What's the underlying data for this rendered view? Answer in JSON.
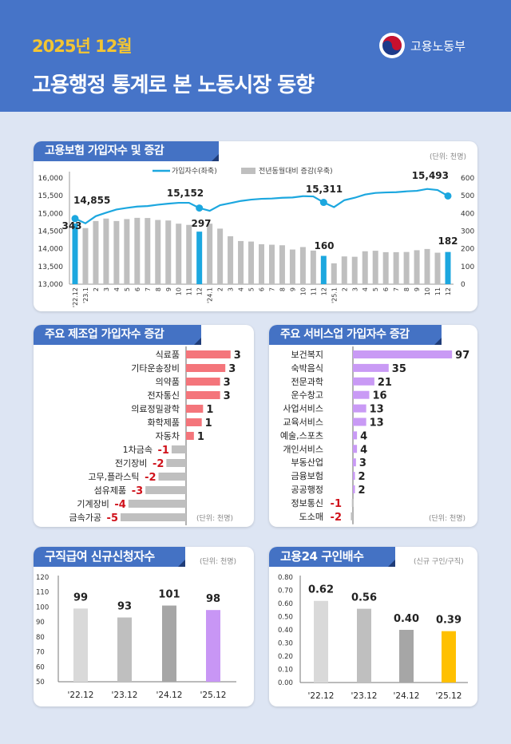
{
  "header": {
    "date": "2025년 12월",
    "title": "고용행정 통계로 본 노동시장 동향",
    "ministry": "고용노동부",
    "background": "#4674c8"
  },
  "chart_data": [
    {
      "type": "bar+line",
      "title": "고용보험 가입자수 및 증감",
      "unit": "(단위: 천명)",
      "legend": [
        "가입자수(좌축)",
        "전년동월대비 증감(우축)"
      ],
      "legend_position": "top",
      "categories": [
        "'22.12",
        "'23.1",
        "2",
        "3",
        "4",
        "5",
        "6",
        "7",
        "8",
        "9",
        "10",
        "11",
        "12",
        "'24.1",
        "2",
        "3",
        "4",
        "5",
        "6",
        "7",
        "8",
        "9",
        "10",
        "11",
        "12",
        "'25.1",
        "2",
        "3",
        "4",
        "5",
        "6",
        "7",
        "8",
        "9",
        "10",
        "11",
        "12"
      ],
      "left_axis": {
        "ylim": [
          13000,
          16000
        ],
        "ticks": [
          "13,000",
          "13,500",
          "14,000",
          "14,500",
          "15,000",
          "15,500",
          "16,000"
        ]
      },
      "right_axis": {
        "ylim": [
          0,
          600
        ],
        "ticks": [
          "0",
          "100",
          "200",
          "300",
          "400",
          "500",
          "600"
        ]
      },
      "line_series": {
        "name": "가입자수(좌축)",
        "color": "#1ca7df",
        "values": [
          14855,
          14720,
          14922,
          15020,
          15110,
          15156,
          15193,
          15208,
          15246,
          15276,
          15299,
          15299,
          15152,
          15073,
          15231,
          15291,
          15352,
          15389,
          15412,
          15420,
          15442,
          15450,
          15487,
          15480,
          15311,
          15178,
          15374,
          15442,
          15533,
          15578,
          15593,
          15600,
          15623,
          15638,
          15691,
          15661,
          15493
        ],
        "labels": [
          {
            "index": 0,
            "text": "14,855"
          },
          {
            "index": 12,
            "text": "15,152"
          },
          {
            "index": 24,
            "text": "15,311"
          },
          {
            "index": 36,
            "text": "15,493"
          }
        ]
      },
      "bar_series": {
        "name": "전년동월대비 증감(우축)",
        "color": "#bfbfbf",
        "highlight_color": "#1ca7df",
        "values": [
          343,
          317,
          357,
          371,
          357,
          368,
          375,
          374,
          363,
          360,
          342,
          335,
          297,
          342,
          314,
          271,
          244,
          241,
          226,
          223,
          220,
          196,
          210,
          190,
          160,
          118,
          157,
          155,
          186,
          189,
          181,
          181,
          182,
          192,
          199,
          178,
          182
        ],
        "labels": [
          {
            "index": 0,
            "text": "343"
          },
          {
            "index": 12,
            "text": "297"
          },
          {
            "index": 24,
            "text": "160"
          },
          {
            "index": 36,
            "text": "182"
          }
        ]
      }
    },
    {
      "type": "hbar",
      "title": "주요 제조업 가입자수 증감",
      "unit": "(단위: 천명)",
      "categories": [
        "식료품",
        "기타운송장비",
        "의약품",
        "전자통신",
        "의료정밀광학",
        "화학제품",
        "자동차",
        "1차금속",
        "전기장비",
        "고무,플라스틱",
        "섬유제품",
        "기계장비",
        "금속가공"
      ],
      "values": [
        3.4,
        3.0,
        2.6,
        2.6,
        1.3,
        1.2,
        0.6,
        -1.1,
        -1.5,
        -2.1,
        -3.1,
        -4.4,
        -5.0
      ],
      "labels": [
        "3",
        "3",
        "3",
        "3",
        "1",
        "1",
        "1",
        "-1",
        "-2",
        "-2",
        "-3",
        "-4",
        "-5"
      ],
      "positive_color": "#f4757b",
      "negative_color": "#bfbfbf",
      "negative_label_color": "#d0121b"
    },
    {
      "type": "hbar",
      "title": "주요 서비스업 가입자수 증감",
      "unit": "(단위: 천명)",
      "categories": [
        "보건복지",
        "숙박음식",
        "전문과학",
        "운수창고",
        "사업서비스",
        "교육서비스",
        "예술,스포츠",
        "개인서비스",
        "부동산업",
        "금융보험",
        "공공행정",
        "정보통신",
        "도소매"
      ],
      "values": [
        97,
        35,
        21,
        16,
        13,
        13,
        4,
        4,
        3,
        2,
        2,
        -1,
        -2
      ],
      "labels": [
        "97",
        "35",
        "21",
        "16",
        "13",
        "13",
        "4",
        "4",
        "3",
        "2",
        "2",
        "-1",
        "-2"
      ],
      "positive_color": "#c99af5",
      "negative_color": "#bfbfbf",
      "negative_label_color": "#d0121b"
    },
    {
      "type": "bar",
      "title": "구직급여 신규신청자수",
      "unit": "(단위: 천명)",
      "categories": [
        "'22.12",
        "'23.12",
        "'24.12",
        "'25.12"
      ],
      "values": [
        99,
        93,
        101,
        98
      ],
      "labels": [
        "99",
        "93",
        "101",
        "98"
      ],
      "ylim": [
        50,
        120
      ],
      "ticks": [
        "50",
        "60",
        "70",
        "80",
        "90",
        "100",
        "110",
        "120"
      ],
      "colors": [
        "#d9d9d9",
        "#bfbfbf",
        "#a6a6a6",
        "#c896f5"
      ]
    },
    {
      "type": "bar",
      "title": "고용24 구인배수",
      "unit": "(신규 구인/구직)",
      "categories": [
        "'22.12",
        "'23.12",
        "'24.12",
        "'25.12"
      ],
      "values": [
        0.62,
        0.56,
        0.4,
        0.39
      ],
      "labels": [
        "0.62",
        "0.56",
        "0.40",
        "0.39"
      ],
      "ylim": [
        0,
        0.8
      ],
      "ticks": [
        "0.00",
        "0.10",
        "0.20",
        "0.30",
        "0.40",
        "0.50",
        "0.60",
        "0.70",
        "0.80"
      ],
      "colors": [
        "#d9d9d9",
        "#bfbfbf",
        "#a6a6a6",
        "#ffc000"
      ]
    }
  ]
}
